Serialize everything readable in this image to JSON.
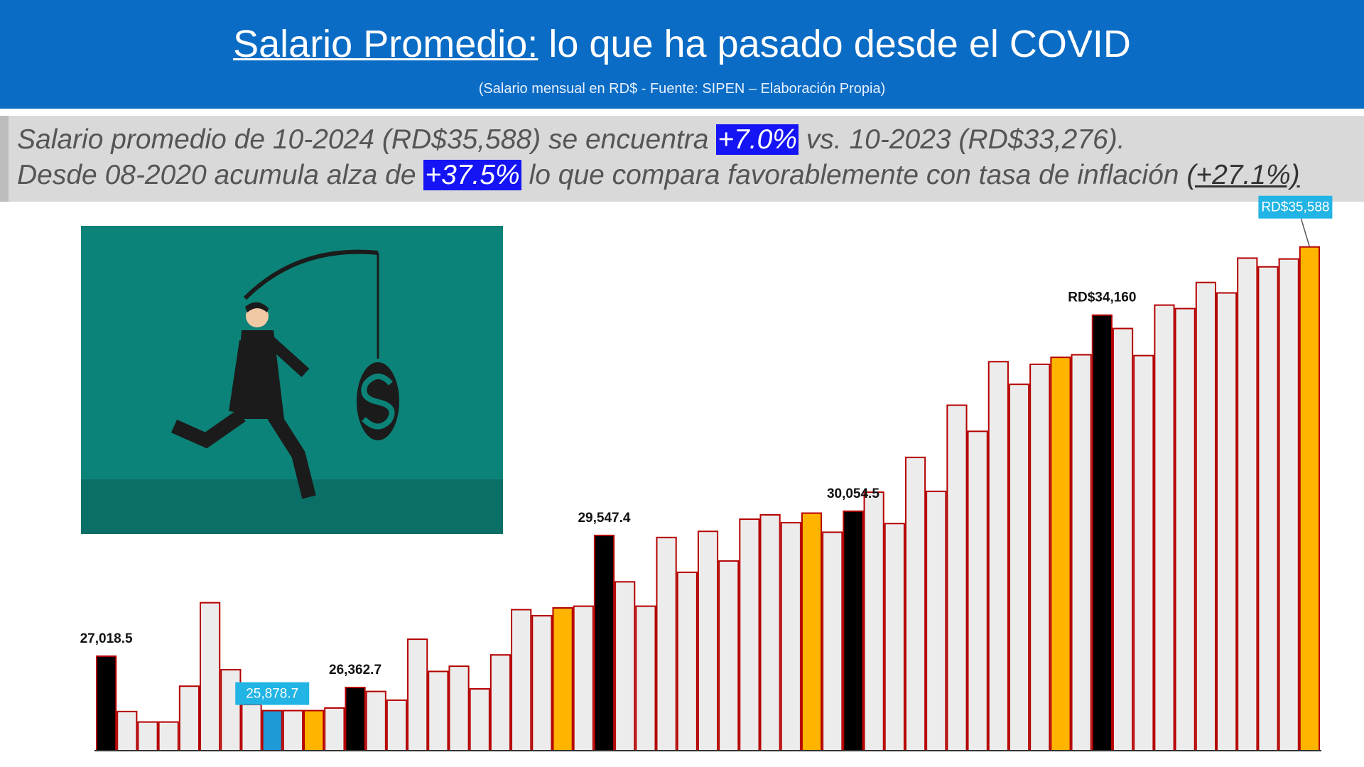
{
  "chart_data": {
    "type": "bar",
    "title_underlined": "Salario Promedio:",
    "title_rest": "lo que ha pasado desde el COVID",
    "subtitle": "(Salario mensual en RD$ - Fuente: SIPEN – Elaboración Propia)",
    "summary": {
      "line1": [
        "Salario promedio de 10-2024 (RD$35,588) se encuentra ",
        "+7.0%",
        " vs. 10-2023 (RD$33,276)."
      ],
      "line2": [
        "Desde 08-2020 acumula alza de ",
        "+37.5%",
        " lo que compara favorablemente con tasa de inflación ",
        "(+27.1%)"
      ]
    },
    "values": [
      27018.5,
      25860,
      25640,
      25640,
      26390,
      28138,
      26735,
      26006,
      25878.7,
      25879,
      25879,
      25933,
      26362.7,
      26280,
      26097,
      27373,
      26699,
      26808,
      26334,
      27045,
      27992,
      27865,
      28029,
      28065,
      29547.4,
      28575,
      28065,
      29504,
      28775,
      29632,
      29012,
      29887,
      29978,
      29814,
      30014,
      29614,
      30054.5,
      30452,
      29795,
      31180,
      30470,
      32274,
      31727,
      33185,
      32711,
      33130,
      33276,
      33330,
      34160,
      33880,
      33313,
      34370,
      34297,
      34844,
      34625,
      35354,
      35171,
      35336,
      35588
    ],
    "value_labels": [
      "27,018.5",
      null,
      null,
      null,
      null,
      null,
      null,
      null,
      "25,878.7",
      null,
      null,
      null,
      "26,362.7",
      null,
      null,
      null,
      null,
      null,
      null,
      null,
      null,
      null,
      null,
      null,
      "29,547.4",
      null,
      null,
      null,
      null,
      null,
      null,
      null,
      null,
      null,
      null,
      null,
      "30,054.5",
      null,
      null,
      null,
      null,
      null,
      null,
      null,
      null,
      null,
      null,
      null,
      "RD$34,160",
      null,
      null,
      null,
      null,
      null,
      null,
      null,
      null,
      null,
      "RD$35,588"
    ],
    "bar_colors": [
      "#000000",
      "#ececec",
      "#ececec",
      "#ececec",
      "#ececec",
      "#ececec",
      "#ececec",
      "#ececec",
      "#1e9ad6",
      "#ececec",
      "#ffb400",
      "#ececec",
      "#000000",
      "#ececec",
      "#ececec",
      "#ececec",
      "#ececec",
      "#ececec",
      "#ececec",
      "#ececec",
      "#ececec",
      "#ececec",
      "#ffb400",
      "#ececec",
      "#000000",
      "#ececec",
      "#ececec",
      "#ececec",
      "#ececec",
      "#ececec",
      "#ececec",
      "#ececec",
      "#ececec",
      "#ececec",
      "#ffb400",
      "#ececec",
      "#000000",
      "#ececec",
      "#ececec",
      "#ececec",
      "#ececec",
      "#ececec",
      "#ececec",
      "#ececec",
      "#ececec",
      "#ececec",
      "#ffb400",
      "#ececec",
      "#000000",
      "#ececec",
      "#ececec",
      "#ececec",
      "#ececec",
      "#ececec",
      "#ececec",
      "#ececec",
      "#ececec",
      "#ececec",
      "#ffb400"
    ],
    "bar_edge_color": "#b50000",
    "boxed_labels": [
      8,
      58
    ],
    "label_box_color": "#22b4e4",
    "ylim": [
      25040,
      36000
    ]
  }
}
